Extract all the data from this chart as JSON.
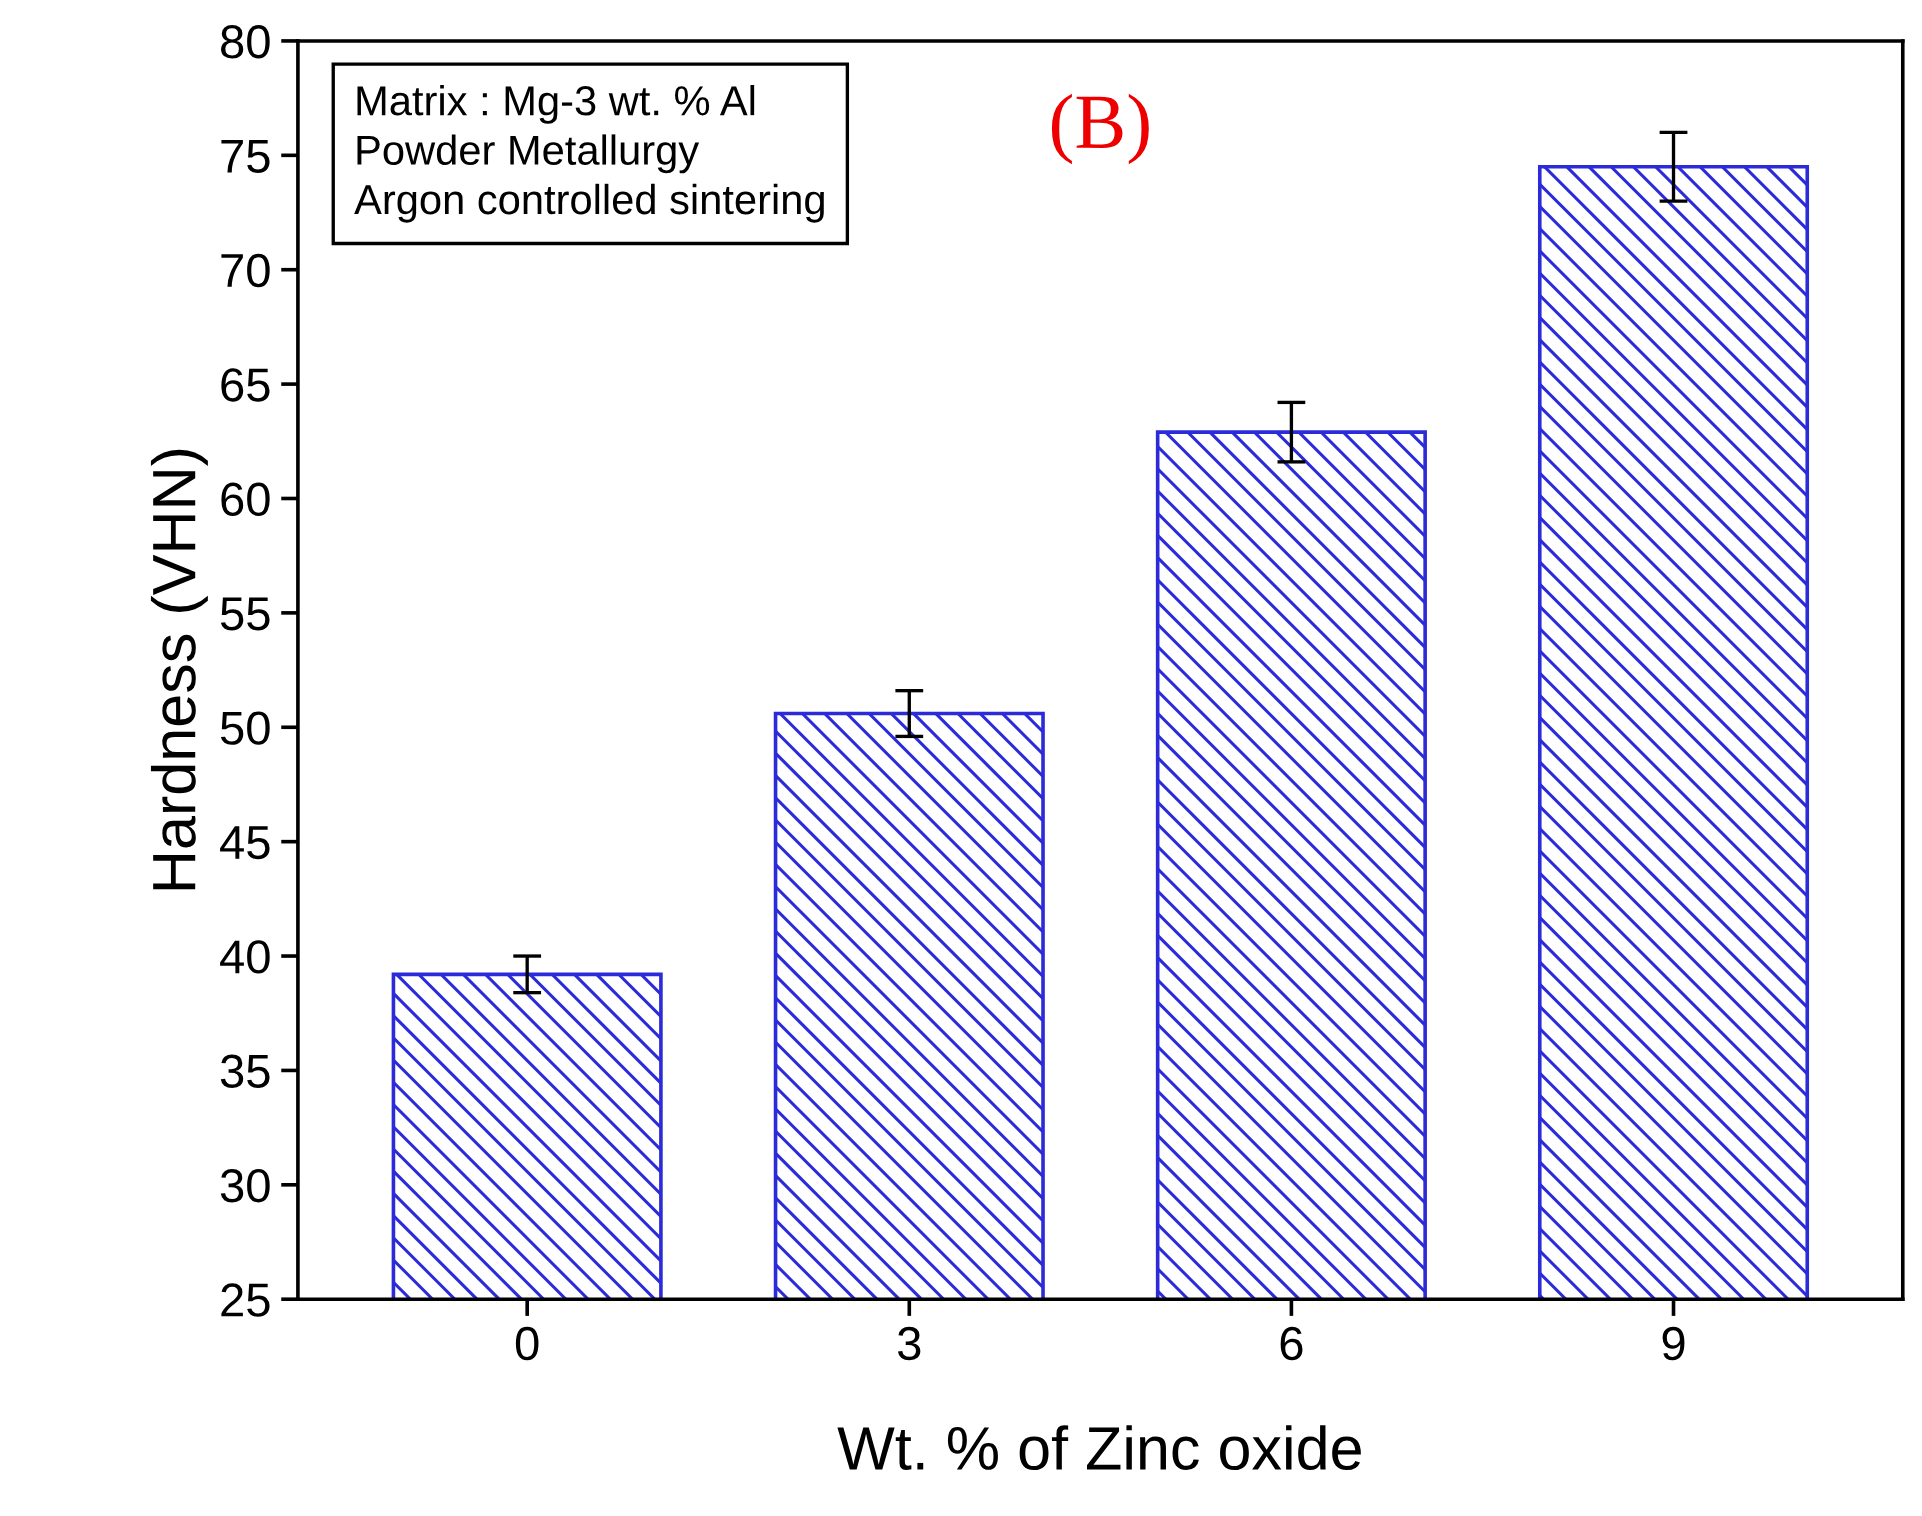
{
  "chart_data": {
    "type": "bar",
    "xlabel": "Wt. % of Zinc oxide",
    "ylabel": "Hardness (VHN)",
    "categories": [
      "0",
      "3",
      "6",
      "9"
    ],
    "values": [
      39.2,
      50.6,
      62.9,
      74.5
    ],
    "errors": [
      0.8,
      1.0,
      1.3,
      1.5
    ],
    "color": "#2b2bd9",
    "ylim": [
      25,
      80
    ],
    "yticks": [
      25,
      30,
      35,
      40,
      45,
      50,
      55,
      60,
      65,
      70,
      75,
      80
    ],
    "grid": false,
    "annotations": [
      "Matrix : Mg-3 wt. % Al",
      "Powder Metallurgy",
      "Argon controlled sintering",
      "(B)"
    ]
  }
}
